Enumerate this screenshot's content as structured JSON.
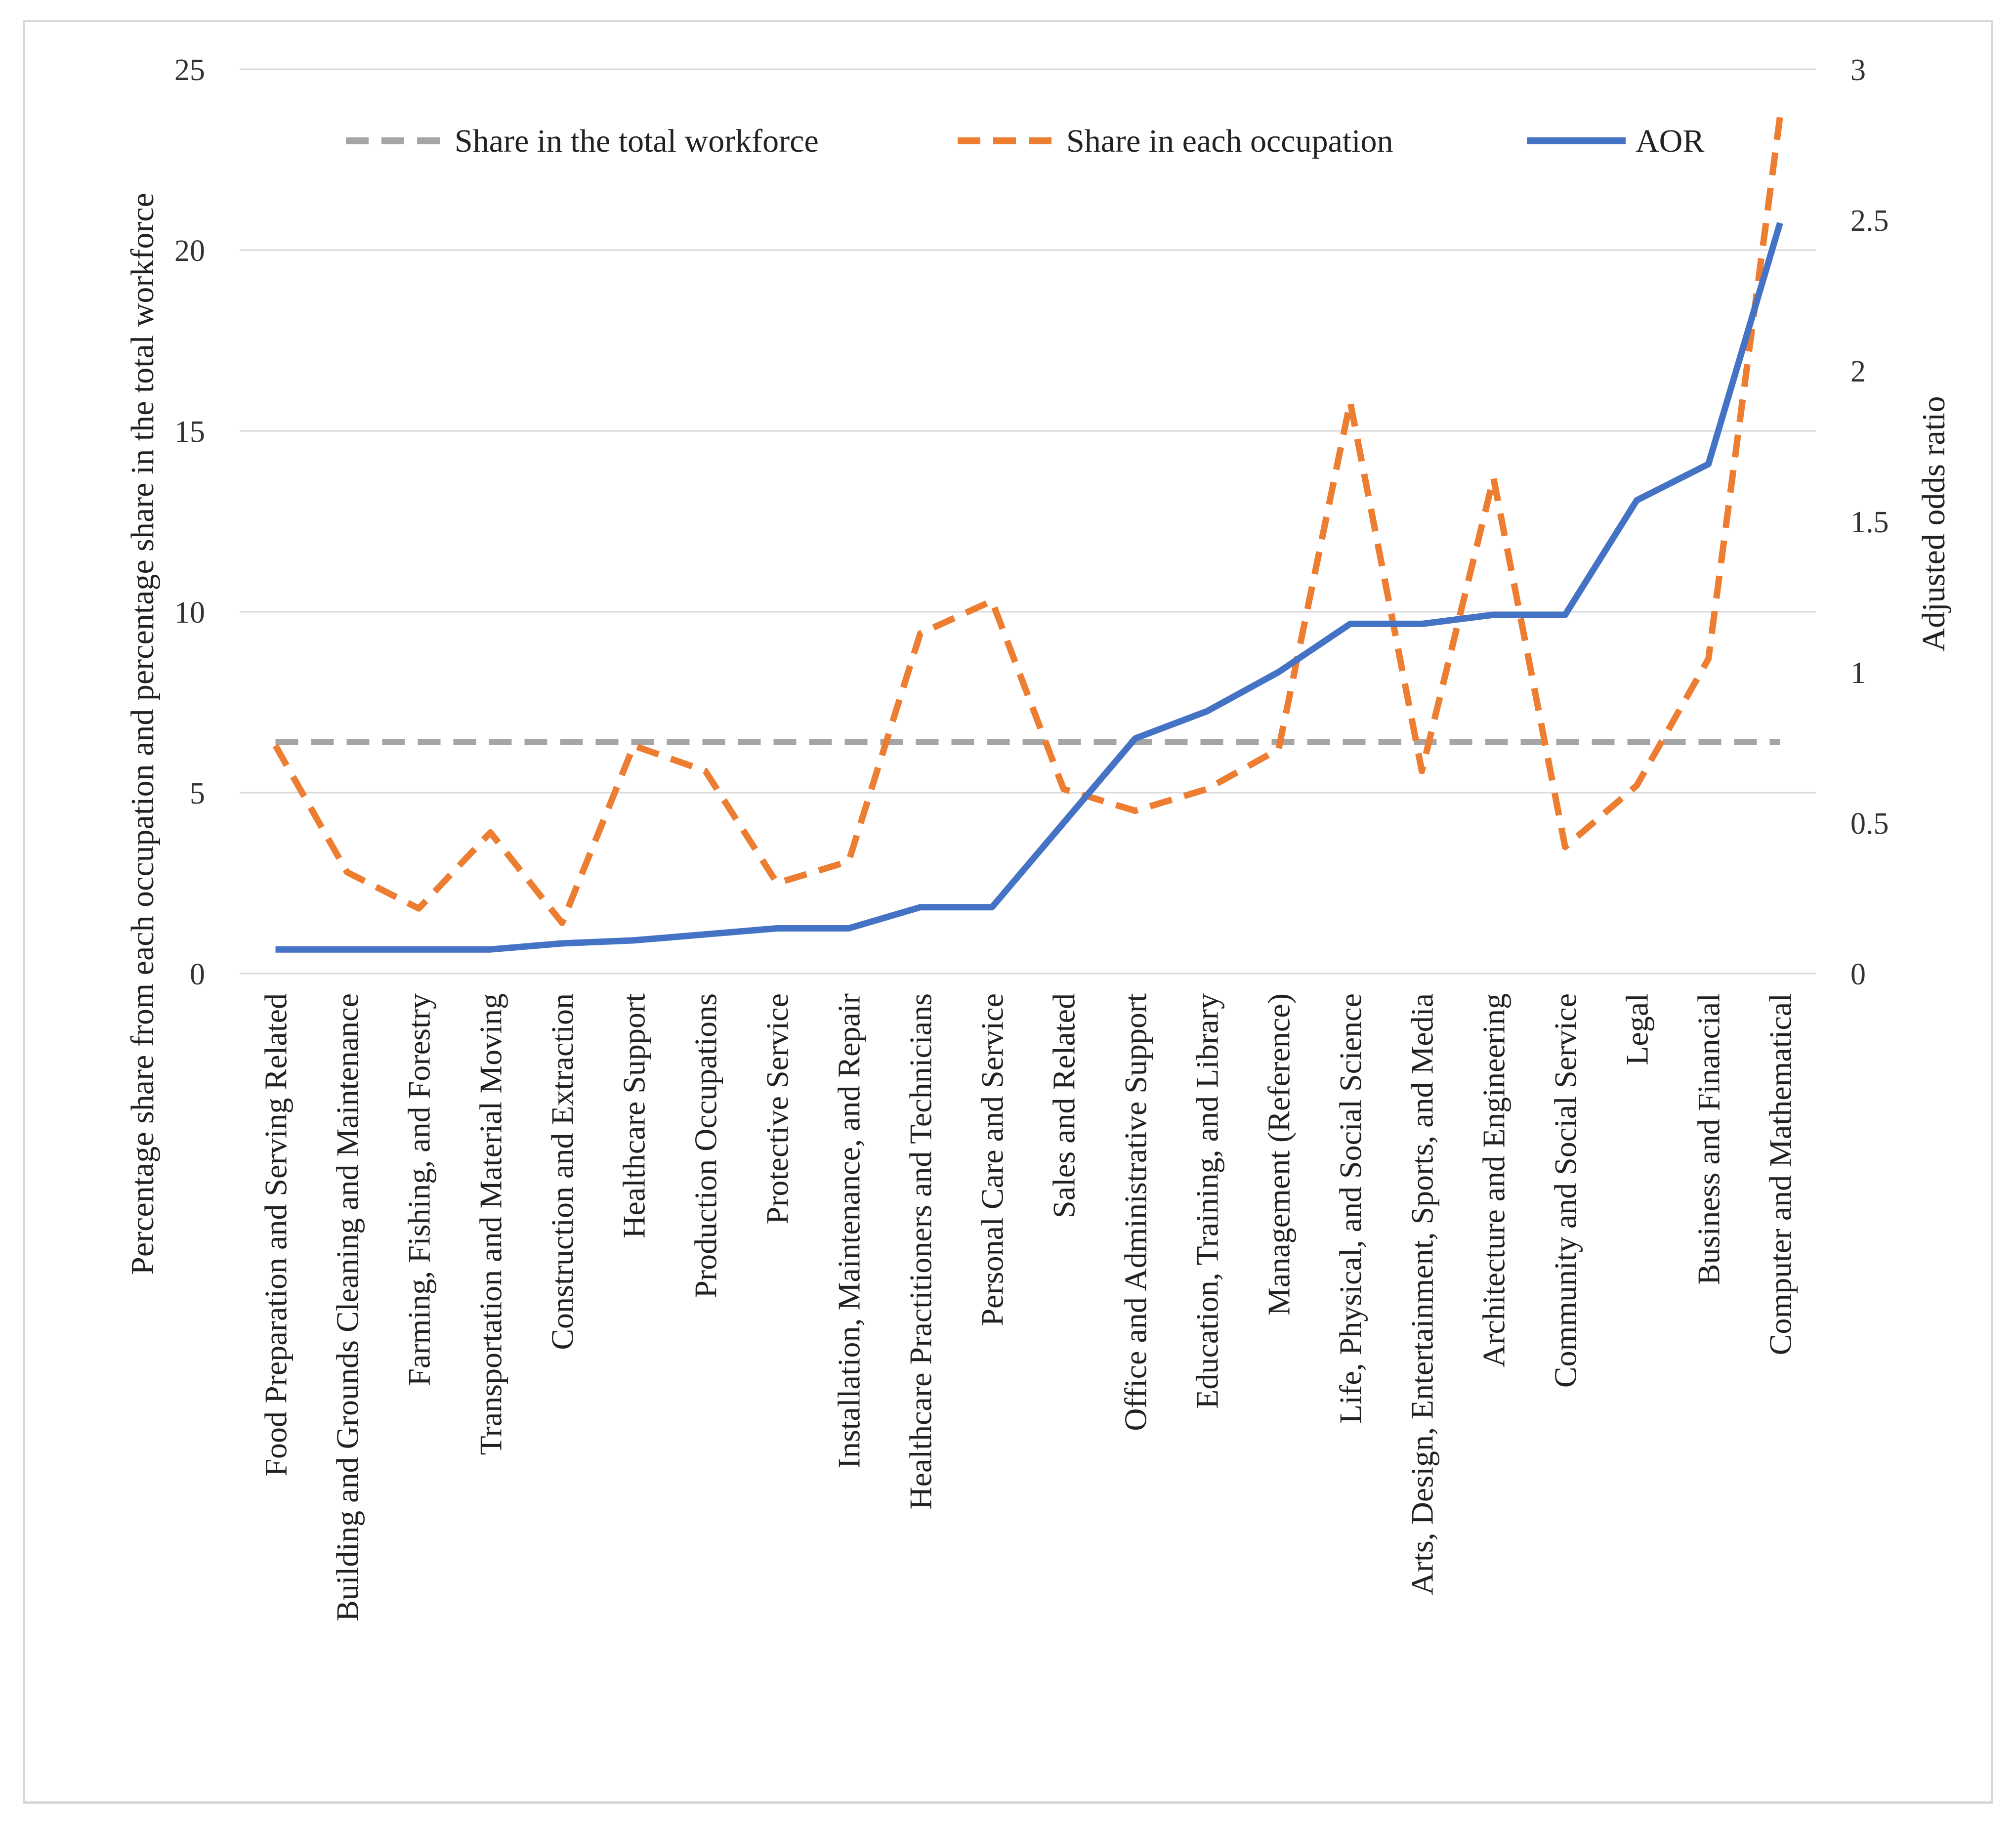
{
  "chart_data": {
    "type": "line",
    "categories": [
      "Food Preparation and Serving Related",
      "Building and Grounds Cleaning and Maintenance",
      "Farming, Fishing, and Forestry",
      "Transportation and Material Moving",
      "Construction and Extraction",
      "Healthcare Support",
      "Production Occupations",
      "Protective Service",
      "Installation, Maintenance, and Repair",
      "Healthcare Practitioners and Technicians",
      "Personal Care and Service",
      "Sales and Related",
      "Office and Administrative Support",
      "Education, Training, and Library",
      "Management (Reference)",
      "Life, Physical, and Social Science",
      "Arts, Design, Entertainment, Sports, and Media",
      "Architecture and Engineering",
      "Community and Social Service",
      "Legal",
      "Business and Financial",
      "Computer and Mathematical"
    ],
    "series": [
      {
        "name": "Share in the total workforce",
        "axis": "left",
        "style": "dashed",
        "color": "#a5a5a5",
        "values": [
          6.4,
          6.4,
          6.4,
          6.4,
          6.4,
          6.4,
          6.4,
          6.4,
          6.4,
          6.4,
          6.4,
          6.4,
          6.4,
          6.4,
          6.4,
          6.4,
          6.4,
          6.4,
          6.4,
          6.4,
          6.4,
          6.4
        ]
      },
      {
        "name": "Share in each occupation",
        "axis": "left",
        "style": "dashed",
        "color": "#ed7d31",
        "values": [
          6.3,
          2.8,
          1.8,
          3.9,
          1.4,
          6.3,
          5.6,
          2.5,
          3.1,
          9.4,
          10.3,
          5.1,
          4.5,
          5.1,
          6.2,
          15.8,
          5.6,
          13.7,
          3.5,
          5.2,
          8.7,
          23.7
        ]
      },
      {
        "name": "AOR",
        "axis": "right",
        "style": "solid",
        "color": "#4472c4",
        "values": [
          0.08,
          0.08,
          0.08,
          0.08,
          0.1,
          0.11,
          0.13,
          0.15,
          0.15,
          0.22,
          0.22,
          0.5,
          0.78,
          0.87,
          1.0,
          1.16,
          1.16,
          1.19,
          1.19,
          1.57,
          1.69,
          2.49
        ]
      }
    ],
    "y_left": {
      "label": "Percentage share from each occupation  and  percentage share in the total workforce",
      "min": 0,
      "max": 25,
      "ticks": [
        "0",
        "5",
        "10",
        "15",
        "20",
        "25"
      ]
    },
    "y_right": {
      "label": "Adjusted odds ratio",
      "min": 0,
      "max": 3,
      "ticks": [
        "0",
        "0.5",
        "1",
        "1.5",
        "2",
        "2.5",
        "3"
      ]
    },
    "grid": true,
    "legend": "top"
  }
}
